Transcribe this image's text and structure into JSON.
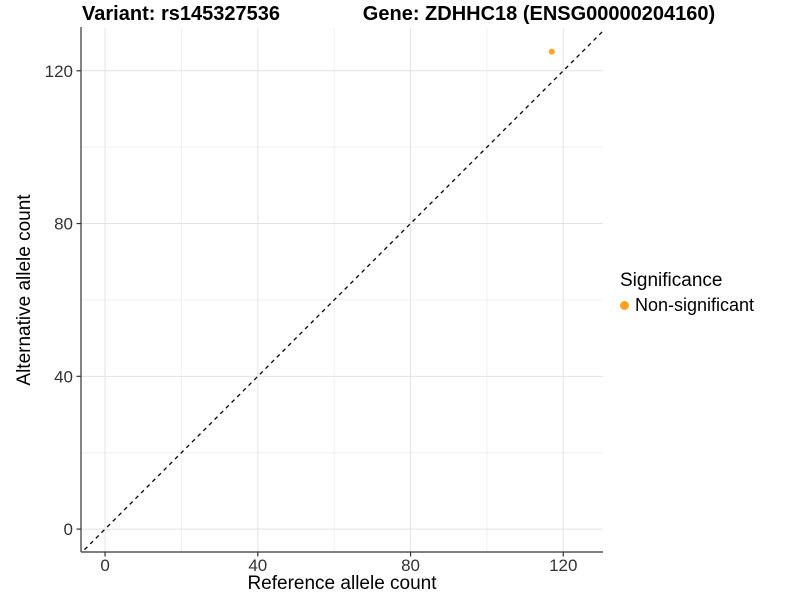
{
  "chart_data": {
    "type": "scatter",
    "title_left": "Variant: rs145327536",
    "title_right": "Gene: ZDHHC18 (ENSG00000204160)",
    "xlabel": "Reference allele count",
    "ylabel": "Alternative allele count",
    "xlim": [
      -6.3,
      130.4
    ],
    "ylim": [
      -6.0,
      131.2
    ],
    "xticks": [
      0,
      40,
      80,
      120
    ],
    "yticks": [
      0,
      40,
      80,
      120
    ],
    "minor_xticks": [
      20,
      60,
      100
    ],
    "minor_yticks": [
      20,
      60,
      100
    ],
    "grid": "major+minor",
    "reference_line": {
      "slope": 1,
      "intercept": 0,
      "style": "dashed",
      "color": "#000000"
    },
    "series": [
      {
        "name": "Non-significant",
        "color": "#FFA420",
        "points": [
          {
            "x": 117,
            "y": 125
          }
        ]
      }
    ],
    "legend": {
      "title": "Significance",
      "position": "right",
      "entries": [
        {
          "label": "Non-significant",
          "color": "#FFA420"
        }
      ]
    },
    "colors": {
      "background": "#ffffff",
      "grid_major": "#e3e3e3",
      "grid_minor": "#f0f0f0",
      "axis_line": "#333333",
      "tick_mark": "#333333",
      "tick_text": "#333333"
    }
  }
}
